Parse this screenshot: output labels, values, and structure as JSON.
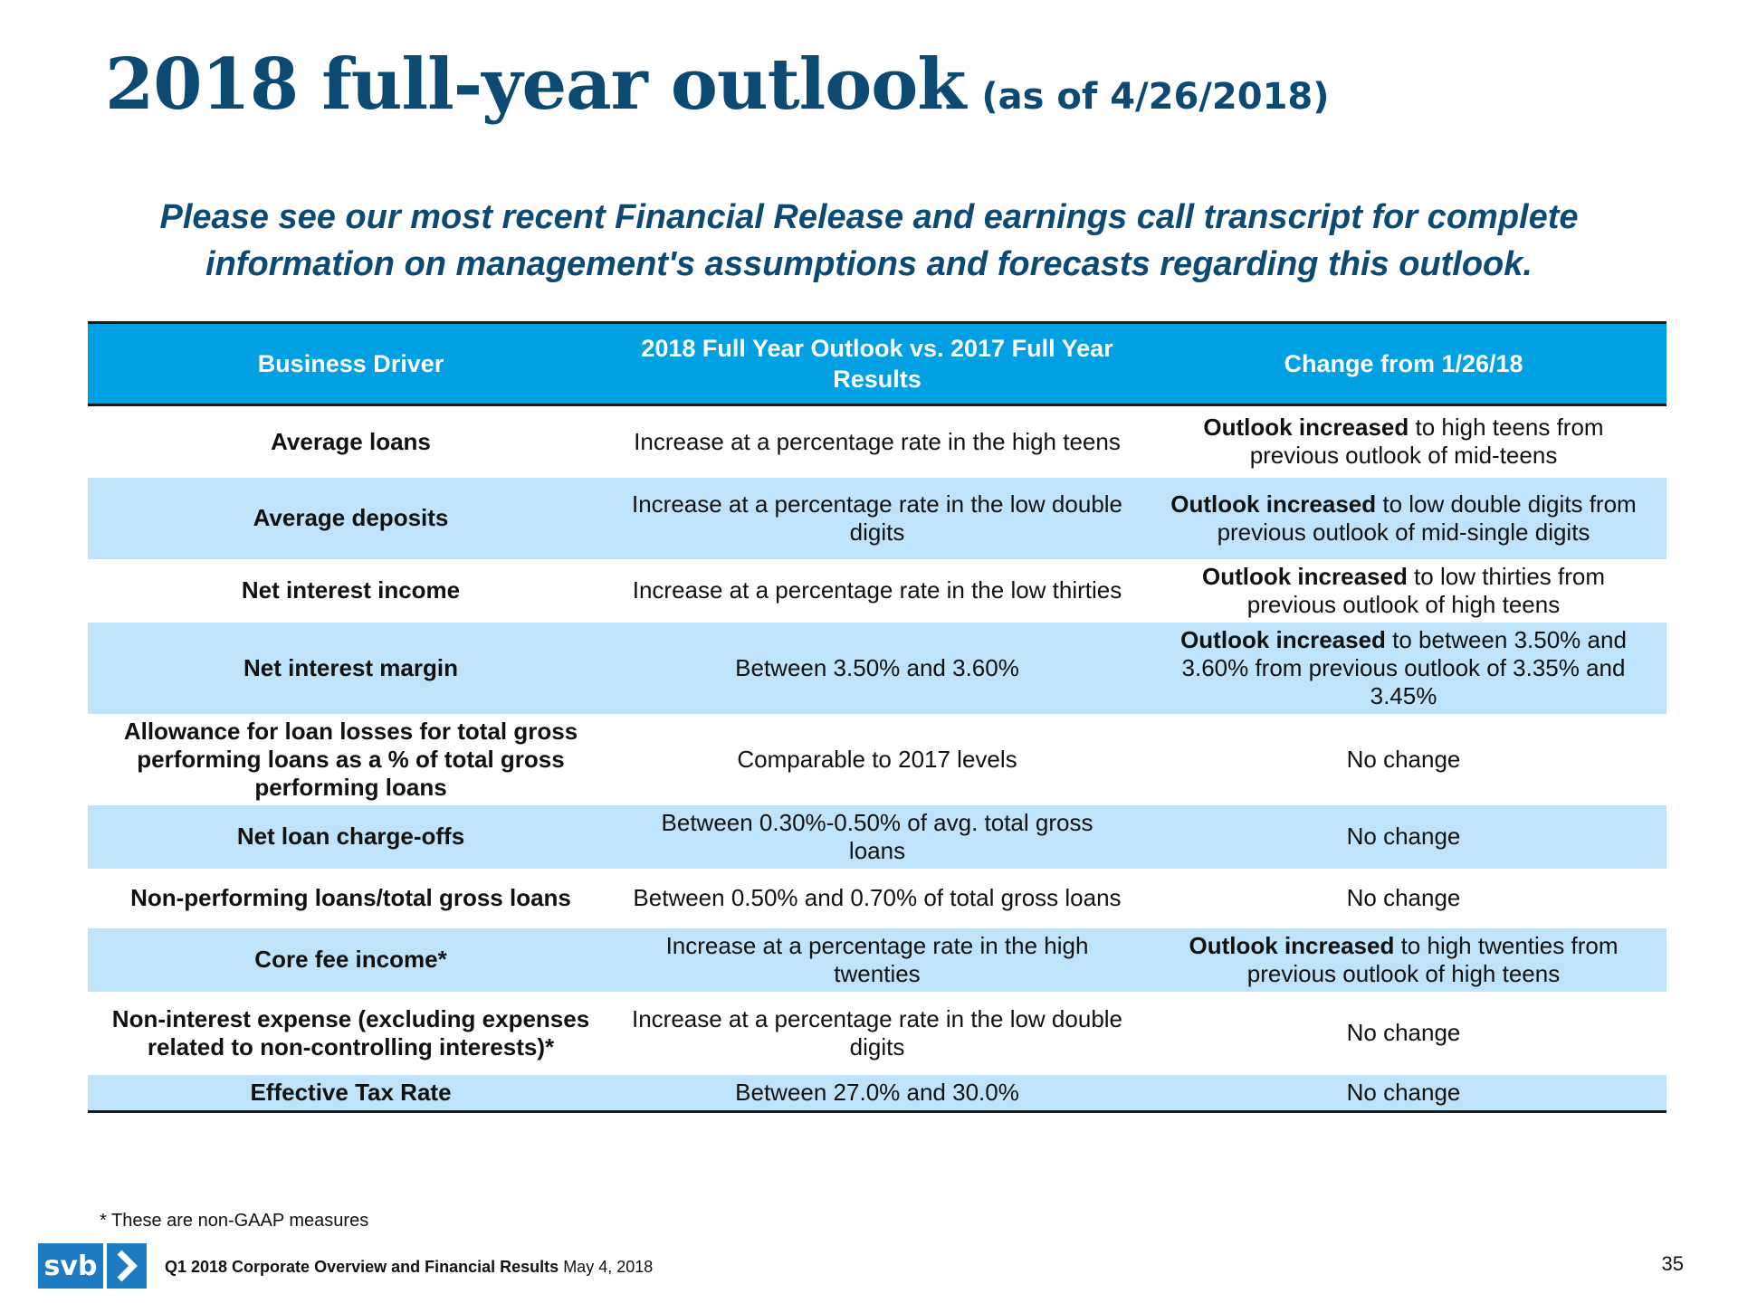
{
  "header": {
    "title": "2018 full-year outlook",
    "title_note": "(as of 4/26/2018)",
    "intro_line1": "Please see our most recent Financial Release and earnings call transcript for complete",
    "intro_line2": "information on management's assumptions and forecasts regarding this outlook."
  },
  "table": {
    "columns": [
      "Business Driver",
      "2018 Full Year Outlook vs. 2017 Full Year Results",
      "Change from 1/26/18"
    ],
    "rows": [
      {
        "driver": "Average loans",
        "outlook": "Increase at a percentage rate in the high teens",
        "change_bold": "Outlook increased",
        "change_rest": " to high teens from previous outlook of mid-teens"
      },
      {
        "driver": "Average deposits",
        "outlook": "Increase at a percentage rate in the low double digits",
        "change_bold": "Outlook increased",
        "change_rest": " to low double digits from previous outlook of mid-single digits"
      },
      {
        "driver": "Net interest income",
        "outlook": "Increase at a percentage rate in the low thirties",
        "change_bold": "Outlook increased",
        "change_rest": " to low thirties from previous outlook of high teens"
      },
      {
        "driver": "Net interest margin",
        "outlook": "Between 3.50% and 3.60%",
        "change_bold": "Outlook increased",
        "change_rest": " to between 3.50% and 3.60% from previous outlook of 3.35% and 3.45%"
      },
      {
        "driver": "Allowance for loan losses for total gross performing loans as a % of total gross performing loans",
        "outlook": "Comparable to 2017 levels",
        "change_bold": "",
        "change_rest": "No change"
      },
      {
        "driver": "Net loan charge-offs",
        "outlook": "Between 0.30%-0.50% of avg. total gross loans",
        "change_bold": "",
        "change_rest": "No change"
      },
      {
        "driver": "Non-performing loans/total gross loans",
        "outlook": "Between 0.50% and 0.70% of total gross loans",
        "change_bold": "",
        "change_rest": "No change"
      },
      {
        "driver": "Core fee income*",
        "outlook": "Increase at a percentage rate in the high twenties",
        "change_bold": "Outlook increased",
        "change_rest": " to high twenties from previous outlook of high teens"
      },
      {
        "driver": "Non-interest expense (excluding expenses related to non-controlling interests)*",
        "outlook": "Increase at a percentage rate in the low double digits",
        "change_bold": "",
        "change_rest": "No change"
      },
      {
        "driver": "Effective Tax Rate",
        "outlook": "Between 27.0% and 30.0%",
        "change_bold": "",
        "change_rest": "No change"
      }
    ]
  },
  "footnote": "* These are non-GAAP measures",
  "footer": {
    "logo_text": "svb",
    "doc_title": "Q1 2018 Corporate Overview and Financial Results",
    "date": "May 4, 2018",
    "page_number": "35"
  },
  "colors": {
    "title": "#0d4a73",
    "header_bg": "#00a0e3",
    "alt_row_bg": "#bfe3fa",
    "logo_bg": "#1c7bc2"
  }
}
